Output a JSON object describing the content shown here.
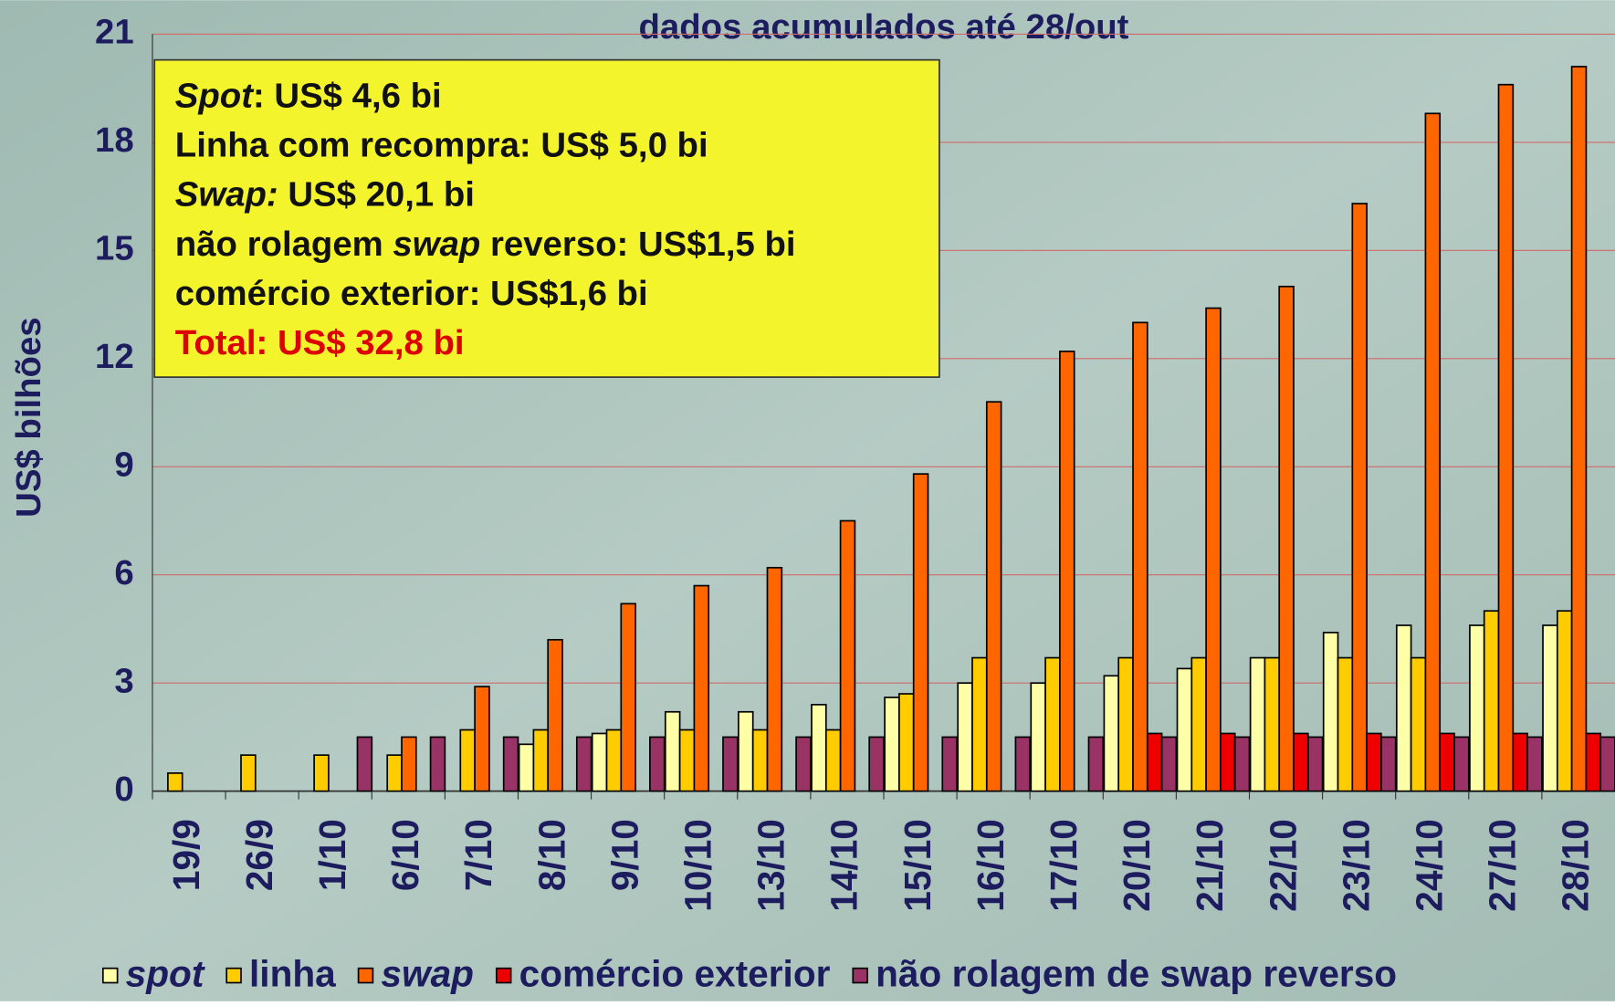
{
  "chart_data": {
    "type": "bar",
    "title": "dados acumulados até 28/out",
    "y_label": "US$ bilhões",
    "categories": [
      "19/9",
      "26/9",
      "1/10",
      "6/10",
      "7/10",
      "8/10",
      "9/10",
      "10/10",
      "13/10",
      "14/10",
      "15/10",
      "16/10",
      "17/10",
      "20/10",
      "21/10",
      "22/10",
      "23/10",
      "24/10",
      "27/10",
      "28/10"
    ],
    "series": [
      {
        "name": "spot",
        "italic": true,
        "color": "#ffffa8",
        "values": [
          null,
          null,
          null,
          null,
          null,
          1.3,
          1.6,
          2.2,
          2.2,
          2.4,
          2.6,
          3.0,
          3.0,
          3.2,
          3.4,
          3.7,
          4.4,
          4.6,
          4.6,
          4.6
        ]
      },
      {
        "name": "linha",
        "italic": false,
        "color": "#ffcc00",
        "values": [
          0.5,
          1.0,
          1.0,
          1.0,
          1.7,
          1.7,
          1.7,
          1.7,
          1.7,
          1.7,
          2.7,
          3.7,
          3.7,
          3.7,
          3.7,
          3.7,
          3.7,
          3.7,
          5.0,
          5.0
        ]
      },
      {
        "name": "swap",
        "italic": true,
        "color": "#ff6600",
        "values": [
          null,
          null,
          null,
          1.5,
          2.9,
          4.2,
          5.2,
          5.7,
          6.2,
          7.5,
          8.8,
          10.8,
          12.2,
          13.0,
          13.4,
          14.0,
          16.3,
          18.8,
          19.6,
          20.1
        ]
      },
      {
        "name": "comércio exterior",
        "italic": false,
        "color": "#ee0000",
        "values": [
          null,
          null,
          null,
          null,
          null,
          null,
          null,
          null,
          null,
          null,
          null,
          null,
          null,
          1.6,
          1.6,
          1.6,
          1.6,
          1.6,
          1.6,
          1.6
        ]
      },
      {
        "name": "não rolagem de swap reverso",
        "italic": false,
        "color": "#993366",
        "values": [
          null,
          null,
          1.5,
          1.5,
          1.5,
          1.5,
          1.5,
          1.5,
          1.5,
          1.5,
          1.5,
          1.5,
          1.5,
          1.5,
          1.5,
          1.5,
          1.5,
          1.5,
          1.5,
          1.5
        ]
      }
    ],
    "ylim": [
      0,
      21
    ],
    "yticks": [
      0,
      3,
      6,
      9,
      12,
      15,
      18,
      21
    ],
    "grid": true,
    "grid_color": "#d06a6a",
    "legend": "bottom",
    "annotation_box": {
      "color": "#f4f42c",
      "lines": [
        {
          "color": "#111111",
          "segments": [
            {
              "text": "Spot",
              "italic": true
            },
            {
              "text": ": US$ 4,6 bi",
              "italic": false
            }
          ]
        },
        {
          "color": "#111111",
          "segments": [
            {
              "text": "Linha com recompra: US$ 5,0 bi",
              "italic": false
            }
          ]
        },
        {
          "color": "#111111",
          "segments": [
            {
              "text": "Swap:",
              "italic": true
            },
            {
              "text": " US$ 20,1 bi",
              "italic": false
            }
          ]
        },
        {
          "color": "#111111",
          "segments": [
            {
              "text": "não rolagem ",
              "italic": false
            },
            {
              "text": "swap",
              "italic": true
            },
            {
              "text": " reverso: US$1,5 bi",
              "italic": false
            }
          ]
        },
        {
          "color": "#111111",
          "segments": [
            {
              "text": "comércio exterior: US$1,6 bi",
              "italic": false
            }
          ]
        },
        {
          "color": "#dd0000",
          "segments": [
            {
              "text": "Total: US$ 32,8 bi",
              "italic": false
            }
          ]
        }
      ]
    }
  }
}
